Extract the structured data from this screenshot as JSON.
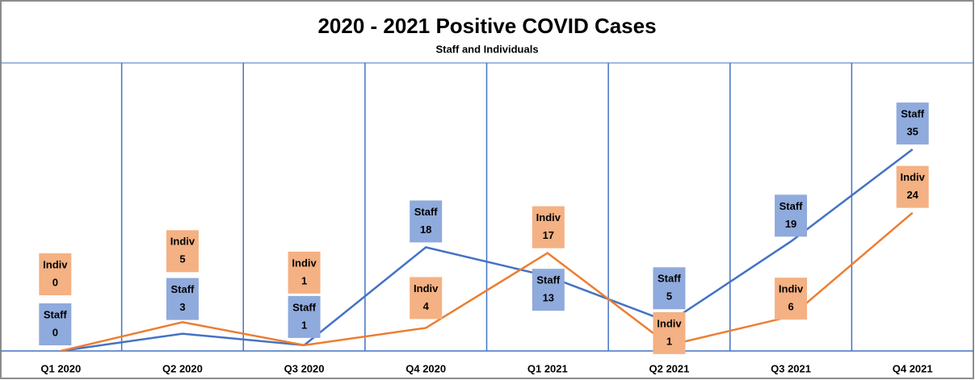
{
  "chart_data": {
    "type": "line",
    "title": "2020 - 2021 Positive COVID Cases",
    "subtitle": "Staff and Individuals",
    "categories": [
      "Q1 2020",
      "Q2 2020",
      "Q3 2020",
      "Q4 2020",
      "Q1 2021",
      "Q2 2021",
      "Q3 2021",
      "Q4 2021"
    ],
    "series": [
      {
        "name": "Staff",
        "color": "#4472c4",
        "values": [
          0,
          3,
          1,
          18,
          13,
          5,
          19,
          35
        ]
      },
      {
        "name": "Indiv",
        "color": "#ed7d31",
        "values": [
          0,
          5,
          1,
          4,
          17,
          1,
          6,
          24
        ]
      }
    ],
    "ylim": [
      0,
      50
    ]
  }
}
